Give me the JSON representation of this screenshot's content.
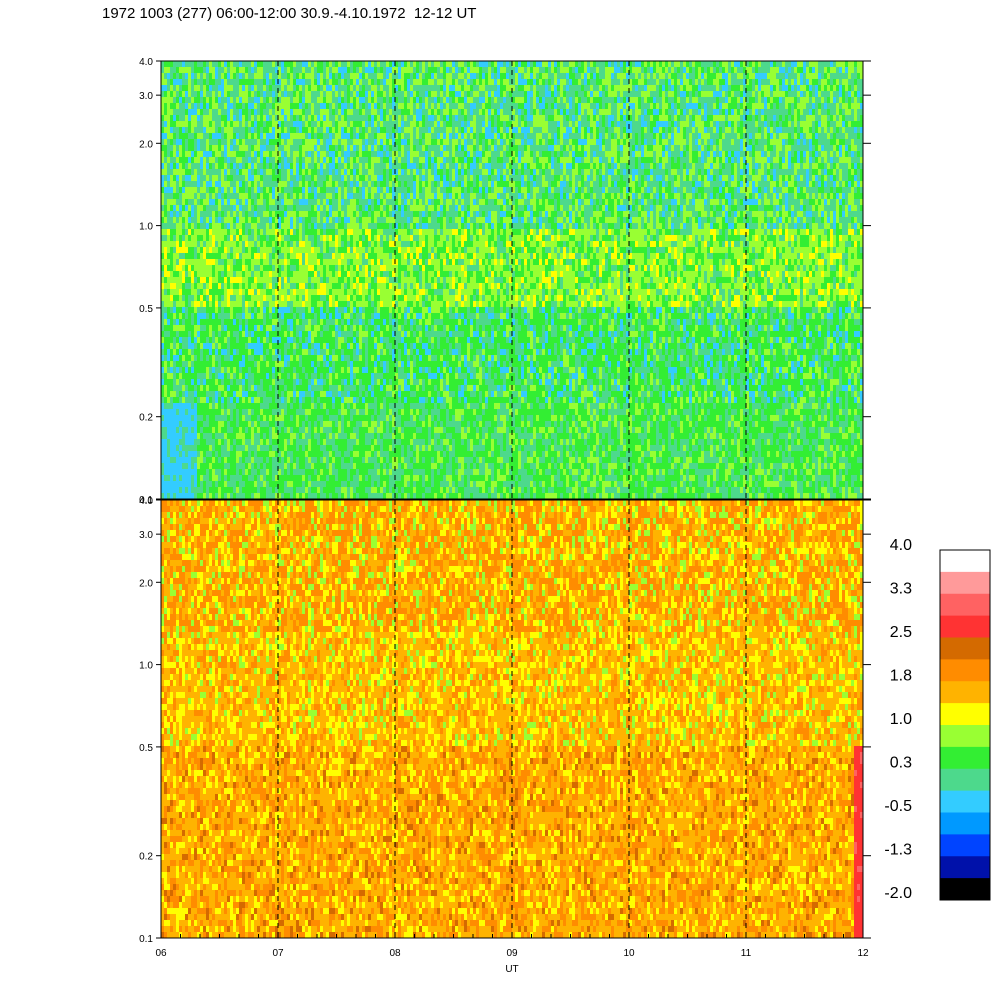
{
  "title": "1972 1003 (277) 06:00-12:00 30.9.-4.10.1972  12-12 UT",
  "chart_data": [
    {
      "type": "heatmap",
      "panel": "top",
      "x_ticks": [
        "06",
        "07",
        "08",
        "09",
        "10",
        "11",
        "12"
      ],
      "x_range": [
        6,
        12
      ],
      "y_scale": "log",
      "y_range": [
        0.1,
        4.0
      ],
      "y_ticks": [
        {
          "value": 0.1,
          "label": "0.1"
        },
        {
          "value": 0.2,
          "label": "0.2"
        },
        {
          "value": 0.5,
          "label": "0.5"
        },
        {
          "value": 1.0,
          "label": "1.0"
        },
        {
          "value": 2.0,
          "label": "2.0"
        },
        {
          "value": 3.0,
          "label": "3.0"
        },
        {
          "value": 4.0,
          "label": "4.0"
        }
      ],
      "dashed_hours": [
        7,
        8,
        9,
        10,
        11
      ],
      "dominant_levels": "low 0.1-0.5 green/teal, 0.5-1.0 green/yellow-green, 1.0-4.0 green/teal"
    },
    {
      "type": "heatmap",
      "panel": "bottom",
      "x_ticks": [
        "06",
        "07",
        "08",
        "09",
        "10",
        "11",
        "12"
      ],
      "x_range": [
        6,
        12
      ],
      "xlabel": "UT",
      "y_scale": "log",
      "y_range": [
        0.1,
        4.0
      ],
      "y_ticks": [
        {
          "value": 0.1,
          "label": "0.1"
        },
        {
          "value": 0.2,
          "label": "0.2"
        },
        {
          "value": 0.5,
          "label": "0.5"
        },
        {
          "value": 1.0,
          "label": "1.0"
        },
        {
          "value": 2.0,
          "label": "2.0"
        },
        {
          "value": 3.0,
          "label": "3.0"
        },
        {
          "value": 4.0,
          "label": "4.0"
        }
      ],
      "dashed_hours": [
        7,
        8,
        9,
        10,
        11
      ],
      "dominant_levels": "orange/yellow throughout, red band near 12 UT at low values"
    }
  ],
  "colorbar": {
    "labels": [
      "4.0",
      "3.3",
      "2.5",
      "1.8",
      "1.0",
      "0.3",
      "-0.5",
      "-1.3",
      "-2.0"
    ],
    "colors": [
      "#ffffff",
      "#ff9a9a",
      "#ff6262",
      "#ff3333",
      "#d46a00",
      "#ff8c00",
      "#ffb300",
      "#ffff00",
      "#99ff33",
      "#33ee33",
      "#4dd98c",
      "#33ccff",
      "#0099ff",
      "#0044ff",
      "#0011aa",
      "#000000"
    ]
  }
}
